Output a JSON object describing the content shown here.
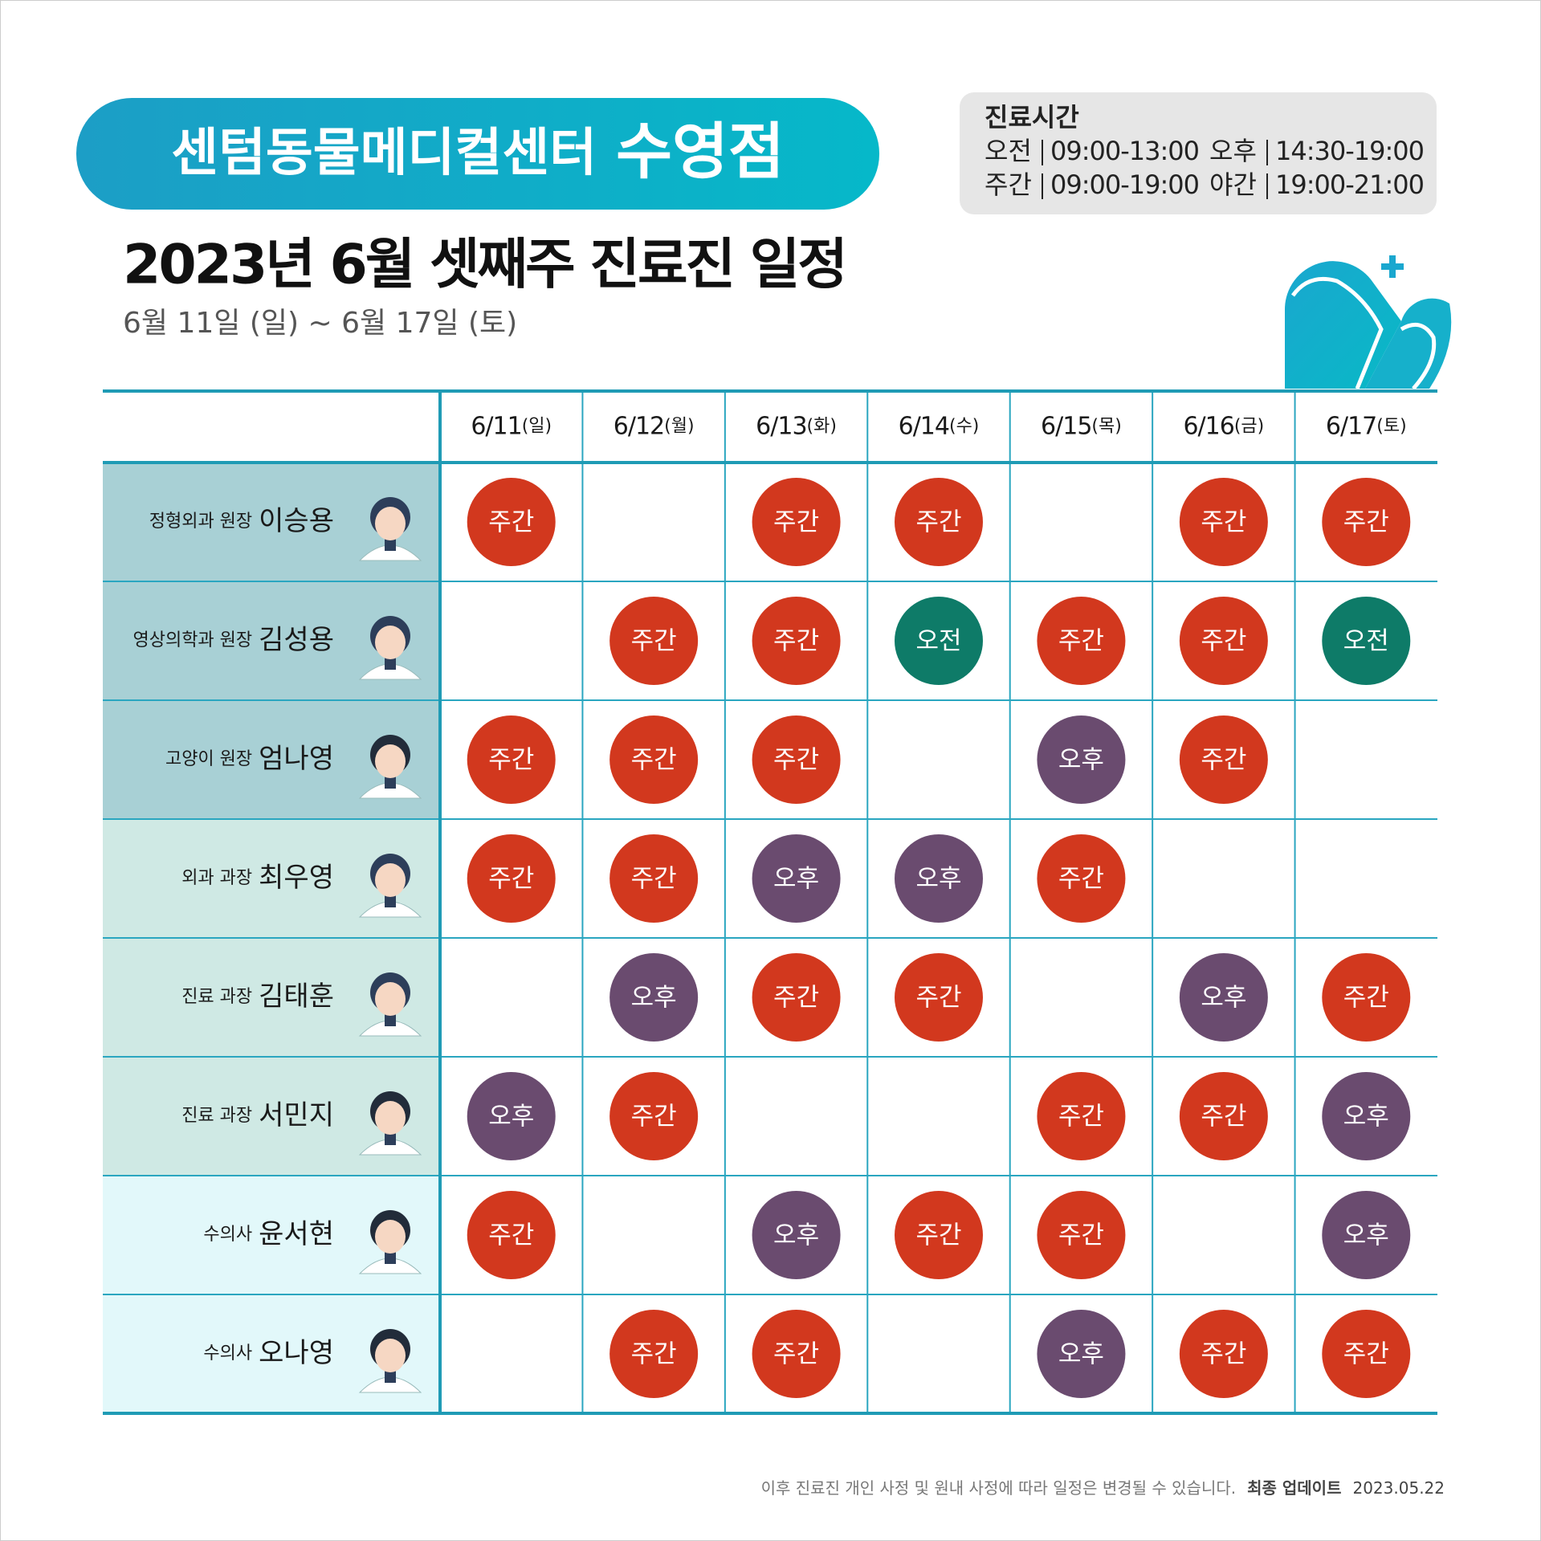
{
  "header": {
    "badge": "센텀동물메디컬센터",
    "badge_strong": "수영점",
    "title": "2023년 6월 셋째주 진료진 일정",
    "subtitle": "6월 11일 (일) ~ 6월 17일 (토)"
  },
  "hours": {
    "title": "진료시간",
    "items": [
      {
        "label": "오전",
        "time": "09:00-13:00"
      },
      {
        "label": "오후",
        "time": "14:30-19:00"
      },
      {
        "label": "주간",
        "time": "09:00-19:00"
      },
      {
        "label": "야간",
        "time": "19:00-21:00"
      }
    ]
  },
  "shift_colors": {
    "주간": "#d2381e",
    "오전": "#0e7b68",
    "오후": "#6a4b6f"
  },
  "table": {
    "columns": [
      {
        "date": "6/11",
        "day": "(일)"
      },
      {
        "date": "6/12",
        "day": "(월)"
      },
      {
        "date": "6/13",
        "day": "(화)"
      },
      {
        "date": "6/14",
        "day": "(수)"
      },
      {
        "date": "6/15",
        "day": "(목)"
      },
      {
        "date": "6/16",
        "day": "(금)"
      },
      {
        "date": "6/17",
        "day": "(토)"
      }
    ],
    "rows": [
      {
        "role": "정형외과 원장",
        "name": "이승용",
        "color": "#a8d0d5",
        "cells": [
          "주간",
          null,
          "주간",
          "주간",
          null,
          "주간",
          "주간"
        ]
      },
      {
        "role": "영상의학과 원장",
        "name": "김성용",
        "color": "#a8d0d5",
        "cells": [
          null,
          "주간",
          "주간",
          "오전",
          "주간",
          "주간",
          "오전"
        ]
      },
      {
        "role": "고양이 원장",
        "name": "엄나영",
        "color": "#a8d0d5",
        "cells": [
          "주간",
          "주간",
          "주간",
          null,
          "오후",
          "주간",
          null
        ]
      },
      {
        "role": "외과 과장",
        "name": "최우영",
        "color": "#cfe9e4",
        "cells": [
          "주간",
          "주간",
          "오후",
          "오후",
          "주간",
          null,
          null
        ]
      },
      {
        "role": "진료 과장",
        "name": "김태훈",
        "color": "#cfe9e4",
        "cells": [
          null,
          "오후",
          "주간",
          "주간",
          null,
          "오후",
          "주간"
        ]
      },
      {
        "role": "진료 과장",
        "name": "서민지",
        "color": "#cfe9e4",
        "cells": [
          "오후",
          "주간",
          null,
          null,
          "주간",
          "주간",
          "오후"
        ]
      },
      {
        "role": "수의사",
        "name": "윤서현",
        "color": "#e2f8fa",
        "cells": [
          "주간",
          null,
          "오후",
          "주간",
          "주간",
          null,
          "오후"
        ]
      },
      {
        "role": "수의사",
        "name": "오나영",
        "color": "#e2f8fa",
        "cells": [
          null,
          "주간",
          "주간",
          null,
          "오후",
          "주간",
          "주간"
        ]
      }
    ]
  },
  "footer": {
    "note": "이후 진료진 개인 사정 및 원내 사정에 따라 일정은 변경될 수 있습니다.",
    "update_label": "최종 업데이트",
    "update_date": "2023.05.22"
  }
}
